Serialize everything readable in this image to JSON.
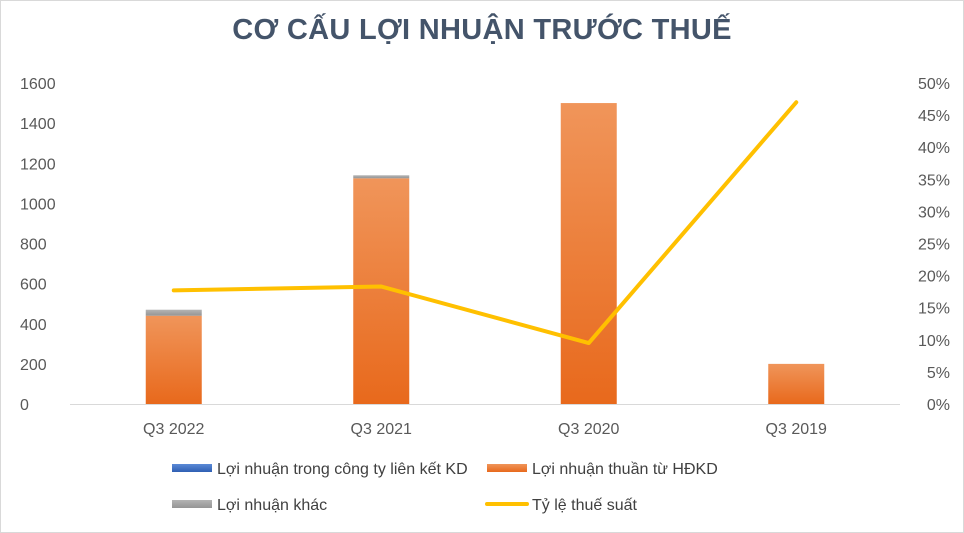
{
  "chart_data": {
    "type": "bar",
    "title": "CƠ CẤU LỢI NHUẬN TRƯỚC THUẾ",
    "categories": [
      "Q3 2022",
      "Q3 2021",
      "Q3 2020",
      "Q3 2019"
    ],
    "series": [
      {
        "name": "Lợi nhuận trong công ty liên kết KD",
        "kind": "bar",
        "axis": "left",
        "color": "#4472c4",
        "values": [
          0,
          0,
          0,
          0
        ]
      },
      {
        "name": "Lợi nhuận thuần từ HĐKD",
        "kind": "bar",
        "axis": "left",
        "color": "#ed7d31",
        "values": [
          440,
          1125,
          1500,
          200
        ]
      },
      {
        "name": "Lợi nhuận khác",
        "kind": "bar",
        "axis": "left",
        "color": "#a5a5a5",
        "values": [
          30,
          15,
          0,
          0
        ]
      },
      {
        "name": "Tỷ lệ thuế suất",
        "kind": "line",
        "axis": "right",
        "color": "#ffc000",
        "values": [
          0.177,
          0.183,
          0.095,
          0.47
        ]
      }
    ],
    "ylim": [
      0,
      1600
    ],
    "yticks": [
      "0",
      "200",
      "400",
      "600",
      "800",
      "1000",
      "1200",
      "1400",
      "1600"
    ],
    "y2lim": [
      0,
      0.5
    ],
    "y2ticks": [
      "0%",
      "5%",
      "10%",
      "15%",
      "20%",
      "25%",
      "30%",
      "35%",
      "40%",
      "45%",
      "50%"
    ],
    "stacked": true,
    "grid": false,
    "legend_position": "bottom"
  }
}
